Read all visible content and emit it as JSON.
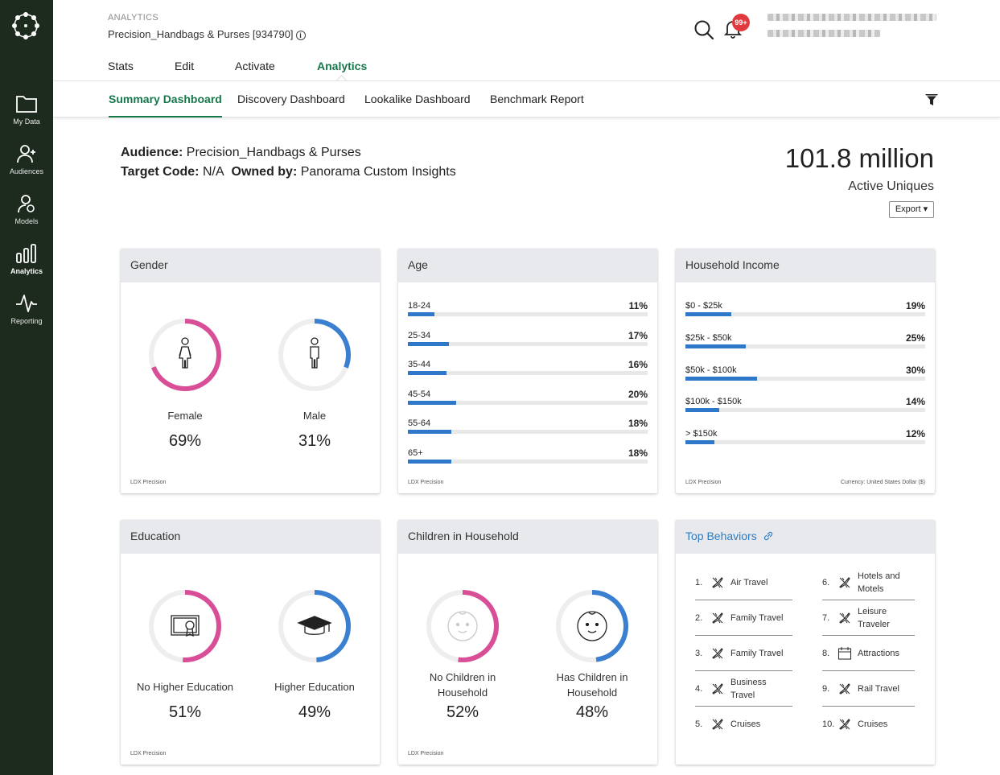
{
  "sidebar": {
    "items": [
      {
        "label": "My Data",
        "icon": "folder-icon"
      },
      {
        "label": "Audiences",
        "icon": "add-person-icon"
      },
      {
        "label": "Models",
        "icon": "person-gear-icon"
      },
      {
        "label": "Analytics",
        "icon": "bar-chart-icon",
        "active": true
      },
      {
        "label": "Reporting",
        "icon": "pulse-line-icon"
      }
    ]
  },
  "header": {
    "section": "ANALYTICS",
    "audience_title": "Precision_Handbags & Purses [934790]",
    "notification_badge": "99+",
    "tabs": [
      "Stats",
      "Edit",
      "Activate",
      "Analytics"
    ]
  },
  "subnav": {
    "tabs": [
      "Summary Dashboard",
      "Discovery Dashboard",
      "Lookalike Dashboard",
      "Benchmark Report"
    ]
  },
  "summary": {
    "audience_label": "Audience:",
    "audience_value": "Precision_Handbags & Purses",
    "target_label": "Target Code:",
    "target_value": "N/A",
    "owned_label": "Owned by:",
    "owned_value": "Panorama Custom Insights",
    "uniques_value": "101.8 million",
    "uniques_label": "Active Uniques",
    "export_label": "Export ▾"
  },
  "colors": {
    "pink": "#d94f97",
    "blue": "#3a7fd0",
    "green": "#16784a",
    "sidebar": "#1c2b1e",
    "ring_track": "#eeeeee"
  },
  "gender": {
    "title": "Gender",
    "items": [
      {
        "label": "Female",
        "value": "69%",
        "fraction": 0.69,
        "color": "pink",
        "icon": "female-icon"
      },
      {
        "label": "Male",
        "value": "31%",
        "fraction": 0.31,
        "color": "blue",
        "icon": "male-icon"
      }
    ],
    "source": "LDX Precision"
  },
  "age": {
    "title": "Age",
    "rows": [
      {
        "label": "18-24",
        "value": "11%",
        "pct": 11
      },
      {
        "label": "25-34",
        "value": "17%",
        "pct": 17
      },
      {
        "label": "35-44",
        "value": "16%",
        "pct": 16
      },
      {
        "label": "45-54",
        "value": "20%",
        "pct": 20
      },
      {
        "label": "55-64",
        "value": "18%",
        "pct": 18
      },
      {
        "label": "65+",
        "value": "18%",
        "pct": 18
      }
    ],
    "source": "LDX Precision"
  },
  "income": {
    "title": "Household Income",
    "rows": [
      {
        "label": "$0 - $25k",
        "value": "19%",
        "pct": 19
      },
      {
        "label": "$25k - $50k",
        "value": "25%",
        "pct": 25
      },
      {
        "label": "$50k - $100k",
        "value": "30%",
        "pct": 30
      },
      {
        "label": "$100k - $150k",
        "value": "14%",
        "pct": 14
      },
      {
        "label": "> $150k",
        "value": "12%",
        "pct": 12
      }
    ],
    "source": "LDX Precision",
    "currency": "Currency: United States Dollar ($)"
  },
  "education": {
    "title": "Education",
    "items": [
      {
        "label": "No Higher Education",
        "value": "51%",
        "fraction": 0.51,
        "color": "pink",
        "icon": "diploma-icon"
      },
      {
        "label": "Higher Education",
        "value": "49%",
        "fraction": 0.49,
        "color": "blue",
        "icon": "graduation-cap-icon"
      }
    ],
    "source": "LDX Precision"
  },
  "children": {
    "title": "Children in Household",
    "items": [
      {
        "label1": "No Children in",
        "label2": "Household",
        "value": "52%",
        "fraction": 0.52,
        "color": "pink",
        "icon": "baby-face-faded-icon"
      },
      {
        "label1": "Has Children in",
        "label2": "Household",
        "value": "48%",
        "fraction": 0.48,
        "color": "blue",
        "icon": "baby-face-icon"
      }
    ],
    "source": "LDX Precision"
  },
  "behaviors": {
    "title": "Top Behaviors",
    "items": [
      {
        "num": "1.",
        "line1": "Air Travel",
        "line2": "",
        "icon": "airplane-icon"
      },
      {
        "num": "2.",
        "line1": "Family Travel",
        "line2": "",
        "icon": "airplane-icon"
      },
      {
        "num": "3.",
        "line1": "Family Travel",
        "line2": "",
        "icon": "airplane-icon"
      },
      {
        "num": "4.",
        "line1": "Business",
        "line2": "Travel",
        "icon": "airplane-icon"
      },
      {
        "num": "5.",
        "line1": "Cruises",
        "line2": "",
        "icon": "airplane-icon"
      },
      {
        "num": "6.",
        "line1": "Hotels and",
        "line2": "Motels",
        "icon": "airplane-icon"
      },
      {
        "num": "7.",
        "line1": "Leisure",
        "line2": "Traveler",
        "icon": "airplane-icon"
      },
      {
        "num": "8.",
        "line1": "Attractions",
        "line2": "",
        "icon": "calendar-icon"
      },
      {
        "num": "9.",
        "line1": "Rail Travel",
        "line2": "",
        "icon": "airplane-icon"
      },
      {
        "num": "10.",
        "line1": "Cruises",
        "line2": "",
        "icon": "airplane-icon"
      }
    ]
  }
}
